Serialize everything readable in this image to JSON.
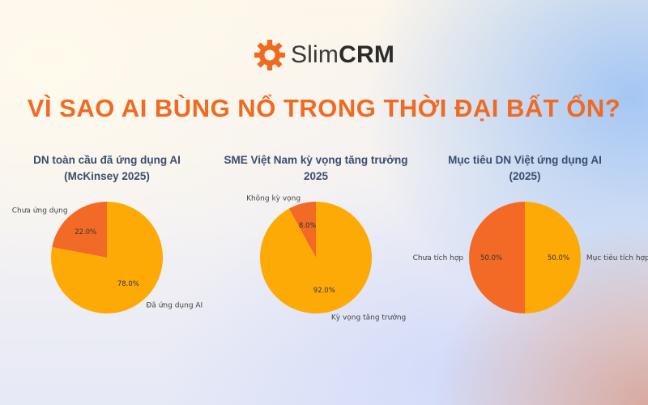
{
  "brand": {
    "name_light": "Slim",
    "name_bold": "CRM",
    "icon": "gear-icon",
    "icon_color": "#ef6a22"
  },
  "headline": "VÌ SAO AI BÙNG NỔ TRONG THỜI ĐẠI BẤT ỔN?",
  "colors": {
    "orange": "#f26a25",
    "amber": "#fdaa07",
    "title": "#3a4d6e"
  },
  "chart_data": [
    {
      "type": "pie",
      "title_lines": [
        "DN toàn cầu đã ứng dụng AI",
        "(McKinsey 2025)"
      ],
      "slices": [
        {
          "label": "Chưa ứng dụng",
          "value": 22.0,
          "pct_label": "22.0%",
          "color": "#f26a25"
        },
        {
          "label": "Đã ứng dụng AI",
          "value": 78.0,
          "pct_label": "78.0%",
          "color": "#fdaa07"
        }
      ]
    },
    {
      "type": "pie",
      "title_lines": [
        "SME Việt Nam kỳ vọng tăng trưởng",
        "2025"
      ],
      "slices": [
        {
          "label": "Không kỳ vọng",
          "value": 8.0,
          "pct_label": "8.0%",
          "color": "#f26a25"
        },
        {
          "label": "Kỳ vọng tăng trưởng",
          "value": 92.0,
          "pct_label": "92.0%",
          "color": "#fdaa07"
        }
      ]
    },
    {
      "type": "pie",
      "title_lines": [
        "Mục tiêu DN Việt ứng dụng AI",
        "(2025)"
      ],
      "slices": [
        {
          "label": "Chưa tích hợp",
          "value": 50.0,
          "pct_label": "50.0%",
          "color": "#f26a25"
        },
        {
          "label": "Mục tiêu tích hợp AI",
          "value": 50.0,
          "pct_label": "50.0%",
          "color": "#fdaa07"
        }
      ]
    }
  ]
}
